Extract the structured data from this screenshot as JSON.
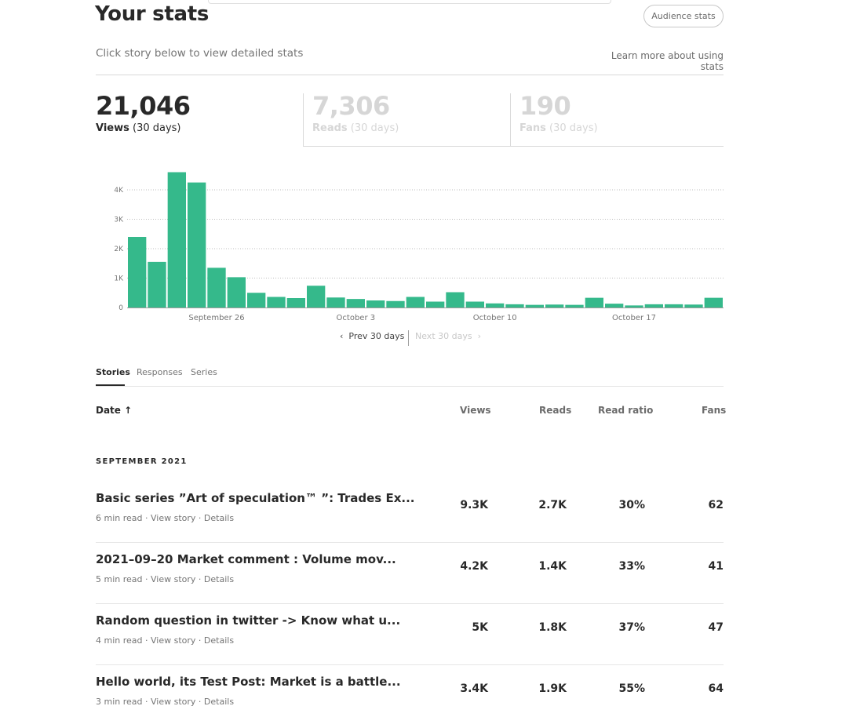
{
  "header": {
    "title": "Your stats",
    "audience_button": "Audience stats",
    "subtitle": "Click story below to view detailed stats",
    "learn_more": "Learn more about using stats"
  },
  "metrics": [
    {
      "value": "21,046",
      "label": "Views",
      "period": "(30 days)"
    },
    {
      "value": "7,306",
      "label": "Reads",
      "period": "(30 days)"
    },
    {
      "value": "190",
      "label": "Fans",
      "period": "(30 days)"
    }
  ],
  "chart_data": {
    "type": "bar",
    "series": [
      {
        "name": "Views",
        "values": [
          2400,
          1550,
          4600,
          4250,
          1350,
          1030,
          500,
          360,
          320,
          740,
          340,
          290,
          240,
          220,
          360,
          200,
          520,
          200,
          140,
          110,
          90,
          100,
          90,
          330,
          130,
          70,
          110,
          110,
          100,
          330
        ]
      }
    ],
    "y_ticks": [
      "0",
      "1K",
      "2K",
      "3K",
      "4K"
    ],
    "ylim": [
      0,
      5000
    ],
    "x_tick_labels": [
      {
        "label": "September 26",
        "bar_index": 4.5
      },
      {
        "label": "October 3",
        "bar_index": 11.5
      },
      {
        "label": "October 10",
        "bar_index": 18.5
      },
      {
        "label": "October 17",
        "bar_index": 25.5
      }
    ],
    "bar_color": "#35b98b",
    "grid": true
  },
  "pager": {
    "prev": "Prev 30 days",
    "next": "Next 30 days"
  },
  "tabs": [
    "Stories",
    "Responses",
    "Series"
  ],
  "table": {
    "headers": {
      "date": "Date",
      "views": "Views",
      "reads": "Reads",
      "ratio": "Read ratio",
      "fans": "Fans"
    },
    "month": "SEPTEMBER 2021",
    "rows": [
      {
        "title": "Basic series ”Art of speculation™ ”: Trades Ex...",
        "read_time": "6 min read",
        "view_story": "View story",
        "details": "Details",
        "views": "9.3K",
        "reads": "2.7K",
        "ratio": "30%",
        "fans": "62"
      },
      {
        "title": "2021–09–20 Market comment : Volume mov...",
        "read_time": "5 min read",
        "view_story": "View story",
        "details": "Details",
        "views": "4.2K",
        "reads": "1.4K",
        "ratio": "33%",
        "fans": "41"
      },
      {
        "title": "Random question in twitter -> Know what u...",
        "read_time": "4 min read",
        "view_story": "View story",
        "details": "Details",
        "views": "5K",
        "reads": "1.8K",
        "ratio": "37%",
        "fans": "47"
      },
      {
        "title": "Hello world, its Test Post: Market is a battle...",
        "read_time": "3 min read",
        "view_story": "View story",
        "details": "Details",
        "views": "3.4K",
        "reads": "1.9K",
        "ratio": "55%",
        "fans": "64"
      }
    ]
  }
}
